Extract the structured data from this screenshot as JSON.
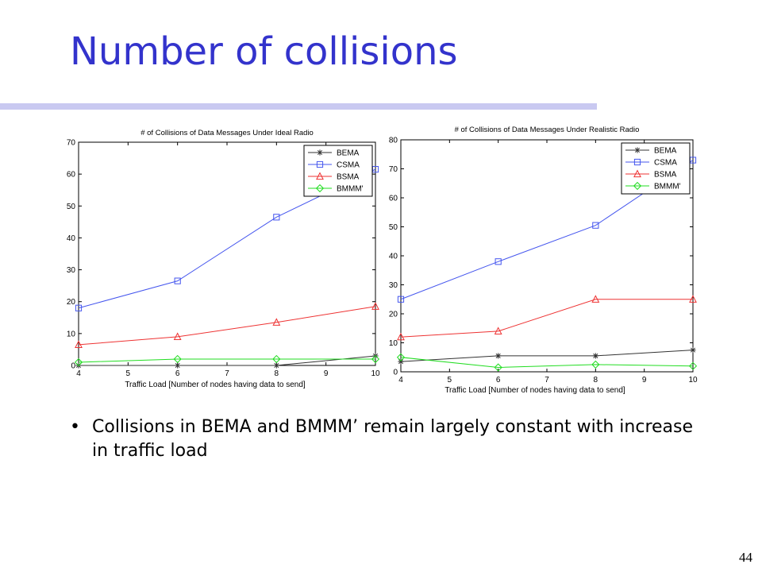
{
  "slide": {
    "title": "Number of collisions",
    "page_number": "44"
  },
  "bullets": [
    "Collisions in BEMA and BMMM’ remain largely constant with increase in traffic load"
  ],
  "colors": {
    "title": "#3333cc",
    "rule": "#c9c9f1"
  },
  "chart_data": [
    {
      "type": "line",
      "title": "# of Collisions of Data Messages Under Ideal Radio",
      "xlabel": "Traffic Load [Number of nodes having data to send]",
      "ylabel": "",
      "xlim": [
        4,
        10
      ],
      "ylim": [
        0,
        70
      ],
      "xticks": [
        4,
        5,
        6,
        7,
        8,
        9,
        10
      ],
      "yticks": [
        0,
        10,
        20,
        30,
        40,
        50,
        60,
        70
      ],
      "grid": false,
      "legend_position": "top-right",
      "x": [
        4,
        6,
        8,
        10
      ],
      "series": [
        {
          "name": "BEMA",
          "color": "#333333",
          "marker": "star",
          "values": [
            0,
            0,
            0,
            3
          ]
        },
        {
          "name": "CSMA",
          "color": "#4455ee",
          "marker": "square",
          "values": [
            18,
            26.5,
            46.5,
            61.5
          ]
        },
        {
          "name": "BSMA",
          "color": "#ee3333",
          "marker": "triangle",
          "values": [
            6.5,
            9,
            13.5,
            18.5
          ]
        },
        {
          "name": "BMMM'",
          "color": "#22dd22",
          "marker": "diamond",
          "values": [
            1,
            2,
            2,
            2
          ]
        }
      ]
    },
    {
      "type": "line",
      "title": "# of Collisions of Data Messages Under Realistic Radio",
      "xlabel": "Traffic Load [Number of nodes having data to send]",
      "ylabel": "",
      "xlim": [
        4,
        10
      ],
      "ylim": [
        0,
        80
      ],
      "xticks": [
        4,
        5,
        6,
        7,
        8,
        9,
        10
      ],
      "yticks": [
        0,
        10,
        20,
        30,
        40,
        50,
        60,
        70,
        80
      ],
      "grid": false,
      "legend_position": "top-right",
      "x": [
        4,
        6,
        8,
        10
      ],
      "series": [
        {
          "name": "BEMA",
          "color": "#333333",
          "marker": "star",
          "values": [
            3.5,
            5.5,
            5.5,
            7.5
          ]
        },
        {
          "name": "CSMA",
          "color": "#4455ee",
          "marker": "square",
          "values": [
            25,
            38,
            50.5,
            73
          ]
        },
        {
          "name": "BSMA",
          "color": "#ee3333",
          "marker": "triangle",
          "values": [
            12,
            14,
            25,
            25
          ]
        },
        {
          "name": "BMMM'",
          "color": "#22dd22",
          "marker": "diamond",
          "values": [
            5,
            1.5,
            2.5,
            2
          ]
        }
      ]
    }
  ]
}
